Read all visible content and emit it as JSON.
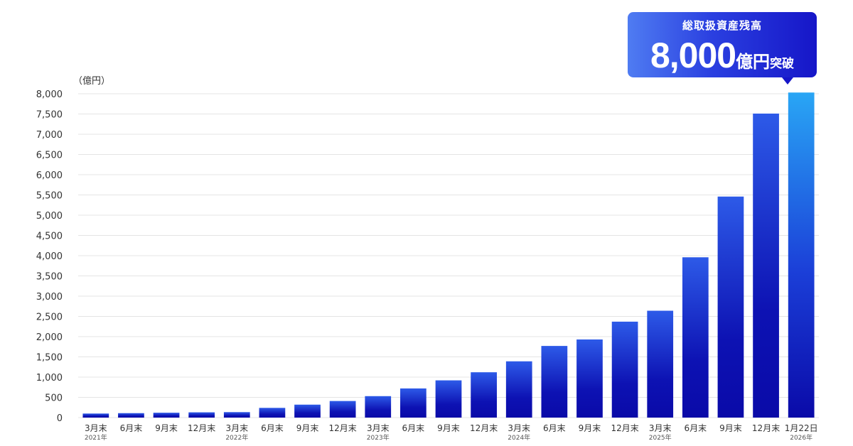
{
  "callout": {
    "title": "総取扱資産残高",
    "value": "8,000",
    "unit": "億円",
    "suffix": "突破"
  },
  "chart_data": {
    "type": "bar",
    "unit_label": "（億円）",
    "ylim": [
      0,
      8000
    ],
    "y_ticks": [
      0,
      500,
      1000,
      1500,
      2000,
      2500,
      3000,
      3500,
      4000,
      4500,
      5000,
      5500,
      6000,
      6500,
      7000,
      7500,
      8000
    ],
    "y_tick_labels": [
      "0",
      "500",
      "1,000",
      "1,500",
      "2,000",
      "2,500",
      "3,000",
      "3,500",
      "4,000",
      "4,500",
      "5,000",
      "5,500",
      "6,000",
      "6,500",
      "7,000",
      "7,500",
      "8,000"
    ],
    "categories": [
      "3月末",
      "6月末",
      "9月末",
      "12月末",
      "3月末",
      "6月末",
      "9月末",
      "12月末",
      "3月末",
      "6月末",
      "9月末",
      "12月末",
      "3月末",
      "6月末",
      "9月末",
      "12月末",
      "3月末",
      "6月末",
      "9月末",
      "12月末",
      "1月22日"
    ],
    "years": [
      "2021年",
      "",
      "",
      "",
      "2022年",
      "",
      "",
      "",
      "2023年",
      "",
      "",
      "",
      "2024年",
      "",
      "",
      "",
      "2025年",
      "",
      "",
      "",
      "2026年"
    ],
    "values": [
      100,
      110,
      120,
      130,
      135,
      240,
      320,
      410,
      530,
      720,
      920,
      1120,
      1390,
      1770,
      1930,
      2370,
      2640,
      3960,
      5460,
      7510,
      8030
    ],
    "grid": true,
    "colors": {
      "bar_bottom": "#0a0aa8",
      "bar_top": "#2d5ae8",
      "bar_highlight_top": "#29a6f5",
      "grid": "#e4e4e4",
      "callout": "#1616c8"
    }
  }
}
